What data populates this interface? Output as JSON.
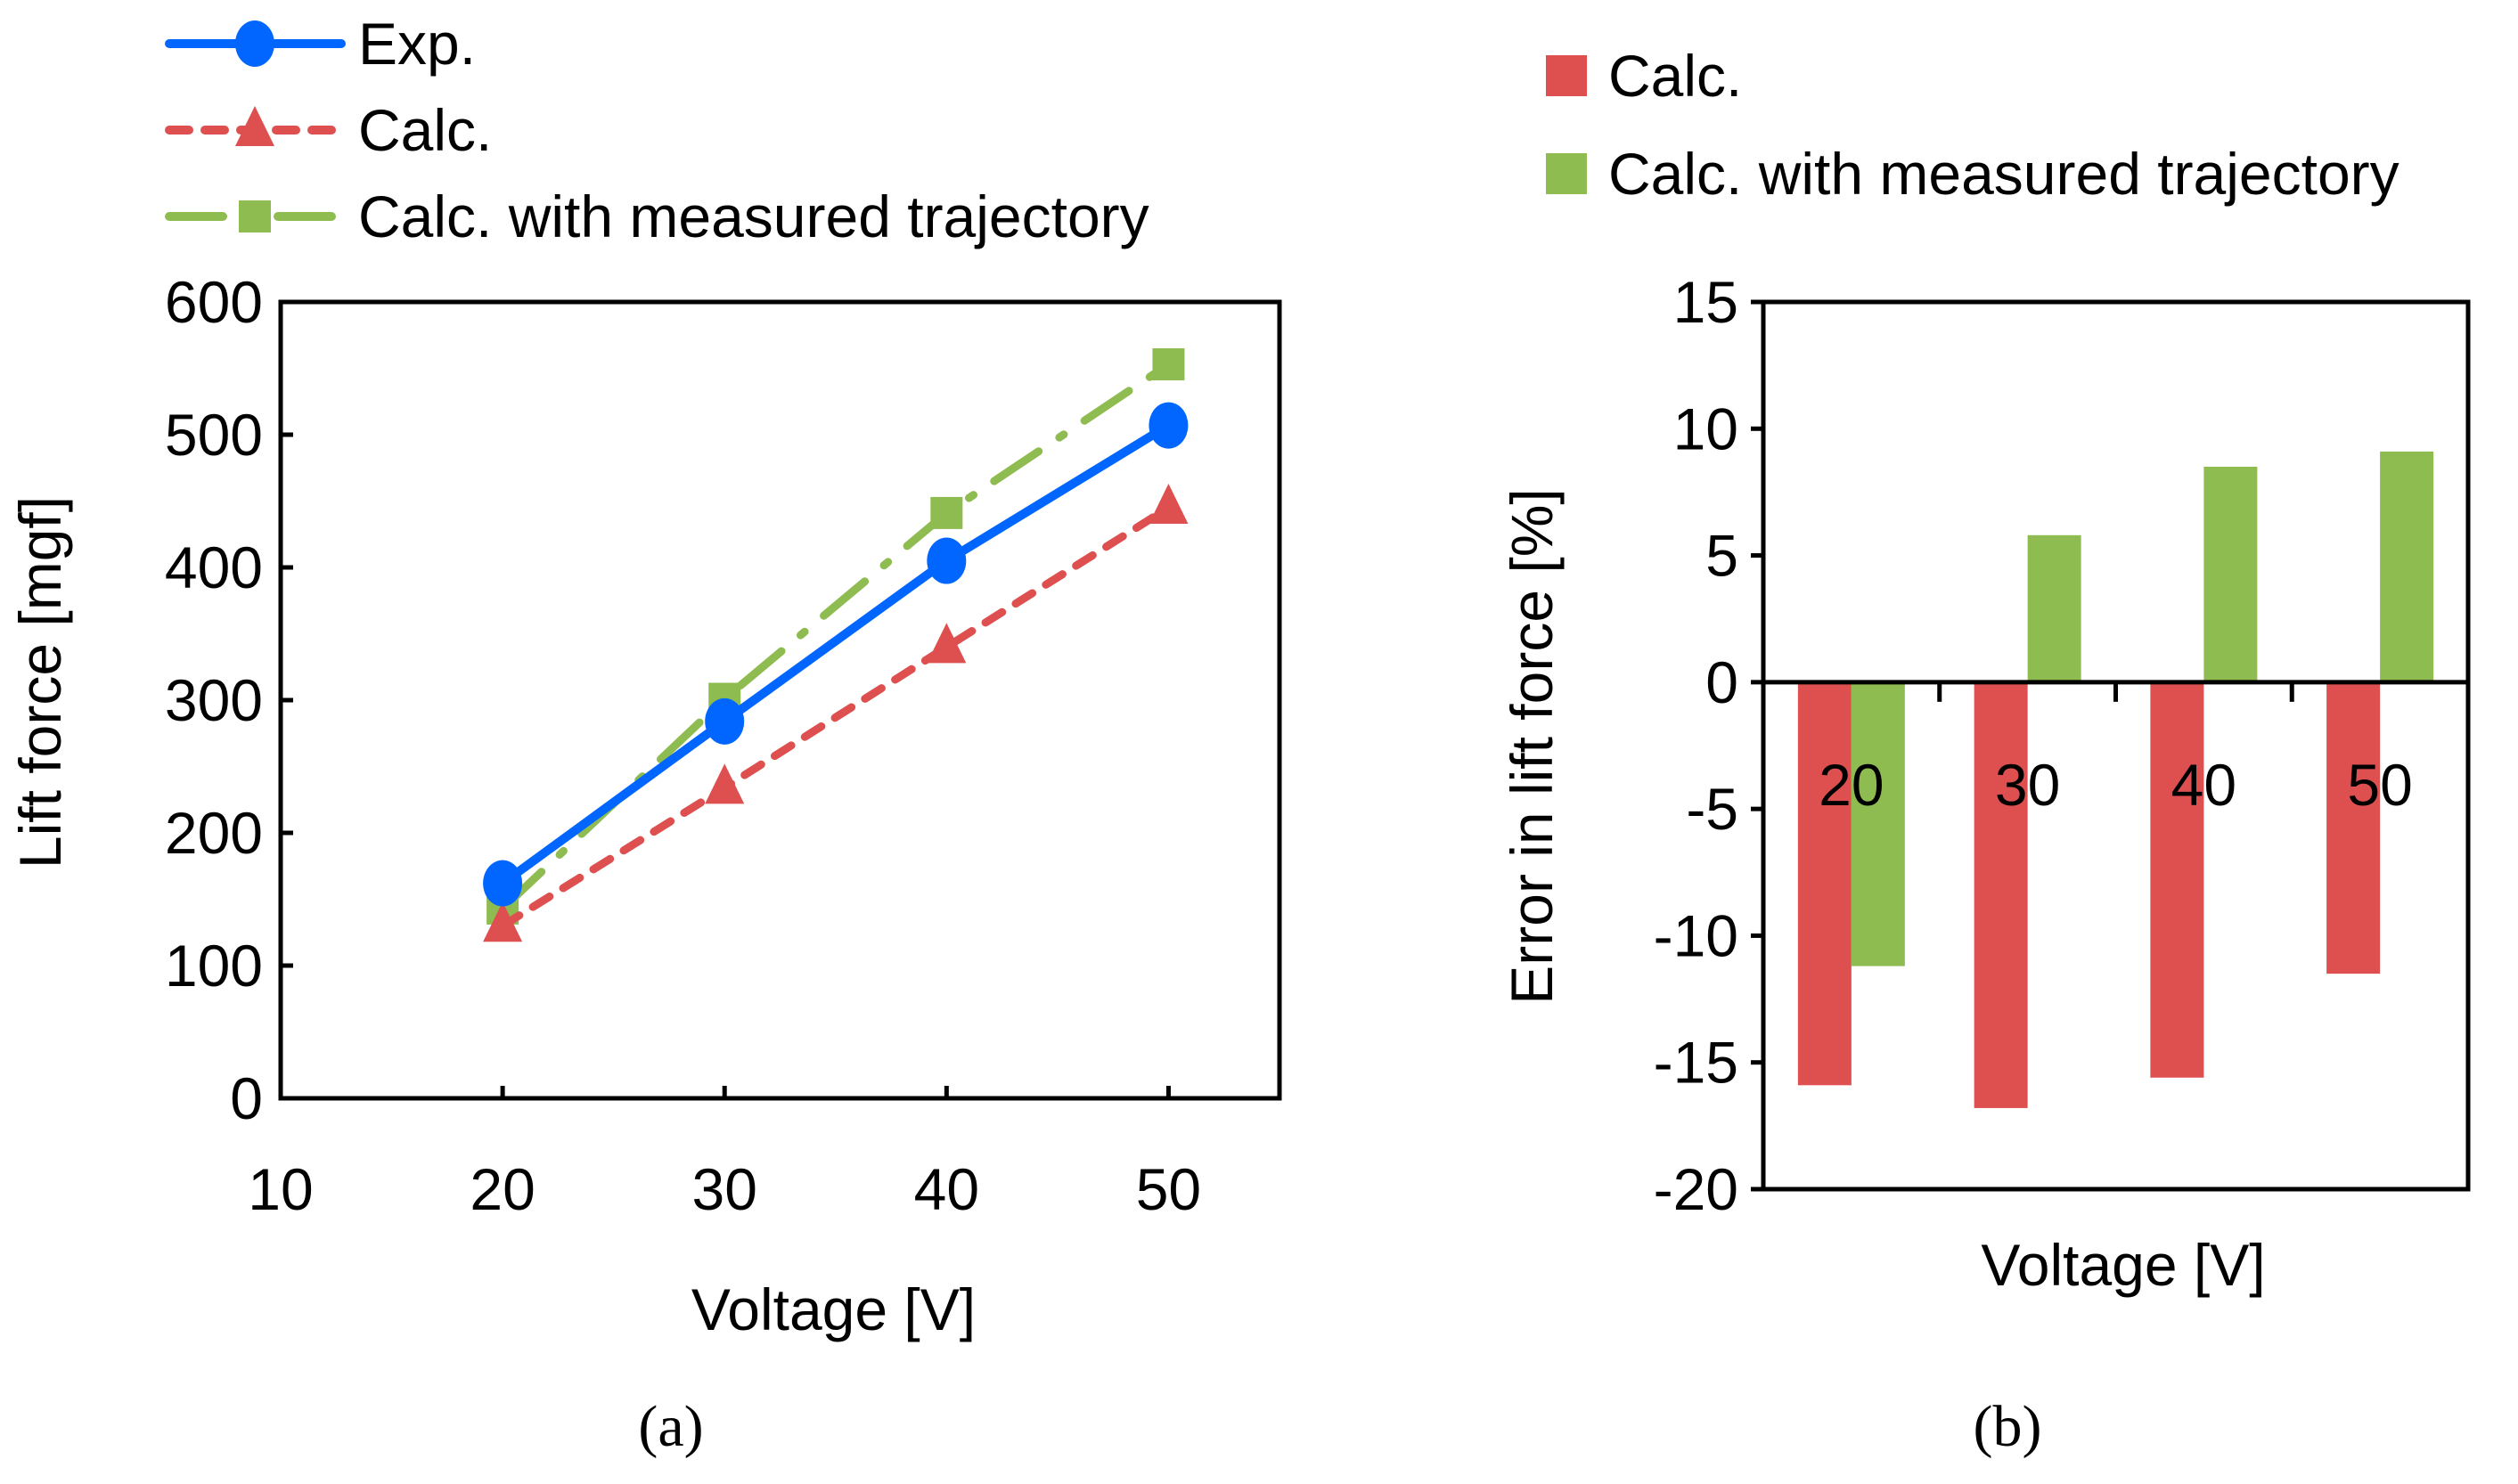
{
  "chart_data": [
    {
      "id": "a",
      "type": "line",
      "caption": "(a)",
      "caption_letter": "a",
      "xlabel": "Voltage [V]",
      "ylabel": "Lift force [mgf]",
      "xlim": [
        10,
        55
      ],
      "ylim": [
        0,
        600
      ],
      "xticks": [
        10,
        20,
        30,
        40,
        50
      ],
      "yticks": [
        0,
        100,
        200,
        300,
        400,
        500,
        600
      ],
      "legend_position": "top",
      "x": [
        20,
        30,
        40,
        50
      ],
      "series": [
        {
          "name": "Exp.",
          "marker": "circle",
          "style": "solid",
          "color": "#0066FF",
          "values": [
            162,
            284,
            405,
            507
          ]
        },
        {
          "name": "Calc.",
          "marker": "triangle",
          "style": "dotted",
          "color": "#DE5050",
          "values": [
            130,
            234,
            340,
            445
          ]
        },
        {
          "name": "Calc. with measured trajectory",
          "marker": "square",
          "style": "dashdot",
          "color": "#8FBC50",
          "values": [
            143,
            301,
            441,
            553
          ]
        }
      ]
    },
    {
      "id": "b",
      "type": "bar",
      "caption": "(b)",
      "caption_letter": "b",
      "xlabel": "Voltage [V]",
      "ylabel": "Error in lift force [%]",
      "ylim": [
        -20,
        15
      ],
      "yticks": [
        15,
        10,
        5,
        0,
        -5,
        -10,
        -15,
        -20
      ],
      "legend_position": "top-right",
      "categories": [
        "20",
        "30",
        "40",
        "50"
      ],
      "series": [
        {
          "name": "Calc.",
          "color": "#DE5050",
          "values": [
            -15.9,
            -16.8,
            -15.6,
            -11.5
          ]
        },
        {
          "name": "Calc. with measured trajectory",
          "color": "#8FBC50",
          "values": [
            -11.2,
            5.8,
            8.5,
            9.1
          ]
        }
      ]
    }
  ]
}
